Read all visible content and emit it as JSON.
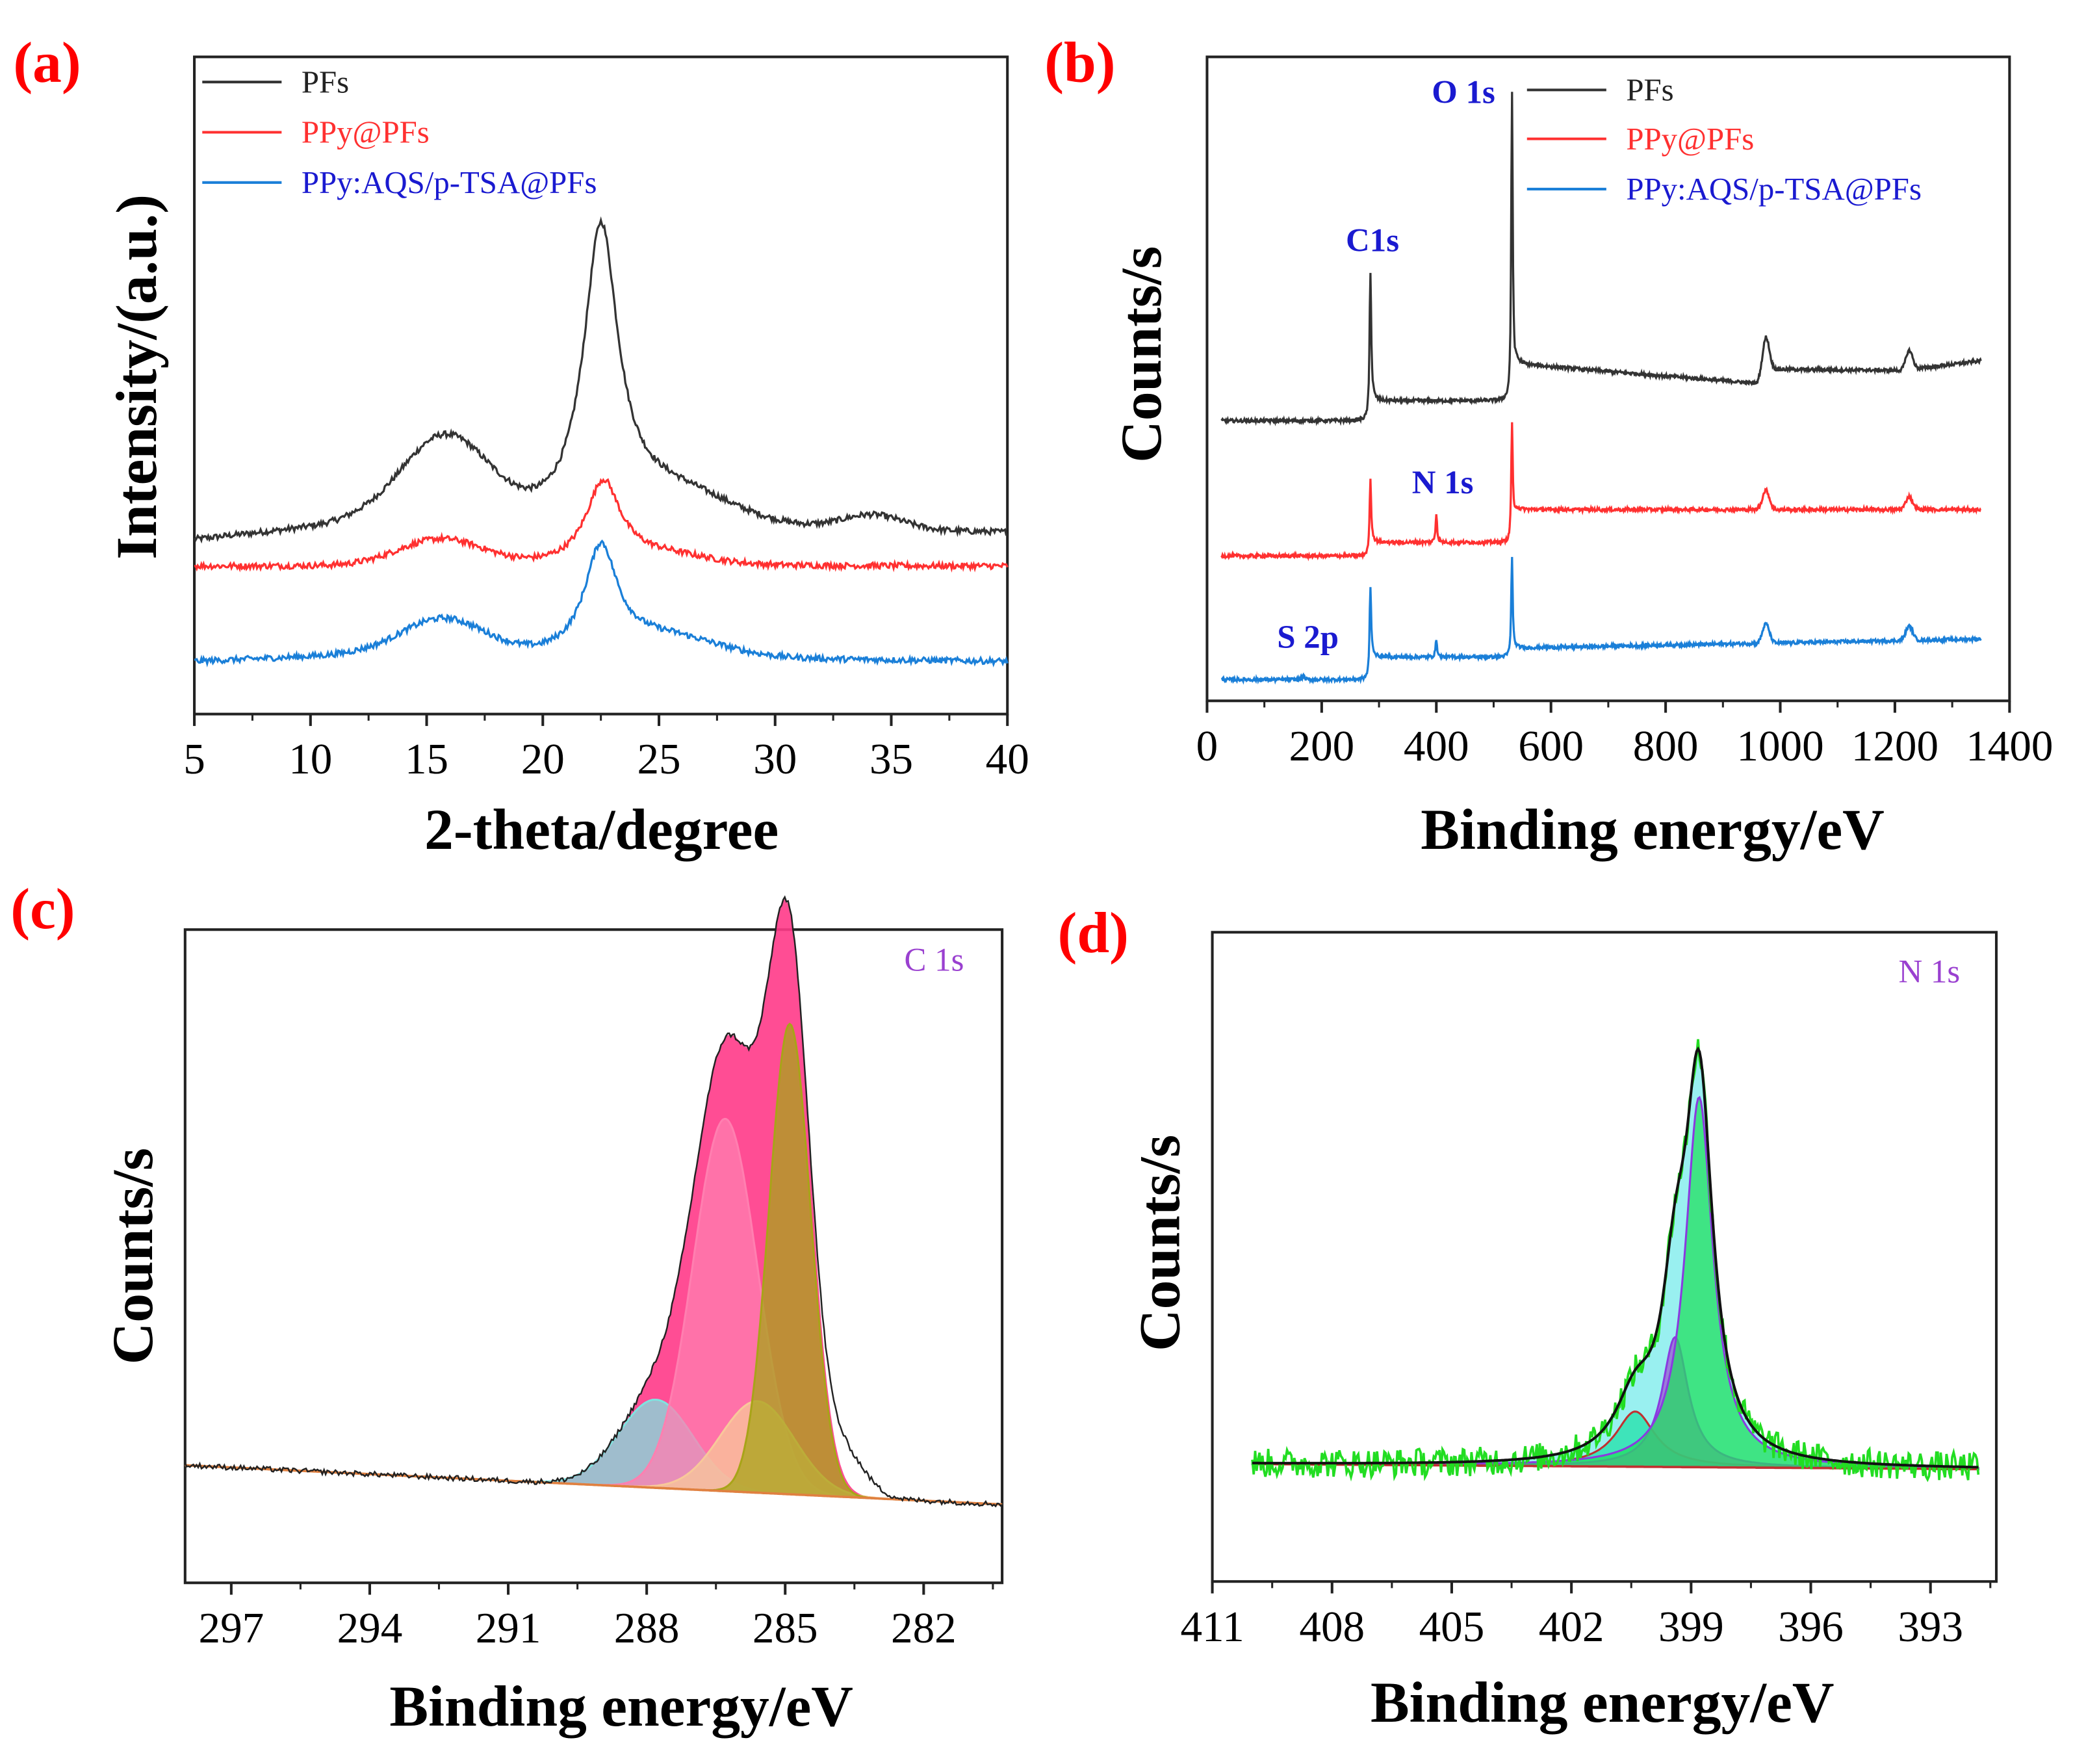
{
  "chart_data": [
    {
      "panel": "(a)",
      "type": "line",
      "xlabel": "2-theta/degree",
      "ylabel": "Intensity/(a.u.)",
      "xlim": [
        5,
        40
      ],
      "ylim": [
        0,
        100
      ],
      "xticks": [
        "5",
        "10",
        "15",
        "20",
        "25",
        "30",
        "35",
        "40"
      ],
      "xtick_values": [
        5,
        10,
        15,
        20,
        25,
        30,
        35,
        40
      ],
      "legend_position": "top-left",
      "series": [
        {
          "name": "PFs",
          "color": "#333333",
          "baseline": [
            [
              5,
              26.5
            ],
            [
              12,
              29
            ],
            [
              40,
              27.6
            ]
          ],
          "peaks": [
            {
              "type": "gauss",
              "center": 15.8,
              "width": 1.9,
              "height": 13
            },
            {
              "type": "lorentz",
              "center": 22.5,
              "width": 0.9,
              "height": 44
            },
            {
              "type": "gauss",
              "center": 25.5,
              "width": 2.5,
              "height": 5
            },
            {
              "type": "gauss",
              "center": 34.2,
              "width": 1.3,
              "height": 2.2
            }
          ]
        },
        {
          "name": "PPy@PFs",
          "color": "#ff3030",
          "baseline": [
            [
              5,
              22.5
            ],
            [
              40,
              22.5
            ]
          ],
          "peaks": [
            {
              "type": "gauss",
              "center": 15.6,
              "width": 1.8,
              "height": 4
            },
            {
              "type": "lorentz",
              "center": 22.6,
              "width": 0.9,
              "height": 12.5
            },
            {
              "type": "gauss",
              "center": 25,
              "width": 2,
              "height": 1.5
            }
          ]
        },
        {
          "name": "PPy:AQS/p-TSA@PFs",
          "color": "#1a7fd8",
          "baseline": [
            [
              5,
              8
            ],
            [
              12,
              9
            ],
            [
              40,
              8
            ]
          ],
          "peaks": [
            {
              "type": "gauss",
              "center": 15.7,
              "width": 1.8,
              "height": 5.5
            },
            {
              "type": "lorentz",
              "center": 22.5,
              "width": 0.85,
              "height": 16
            },
            {
              "type": "gauss",
              "center": 25.2,
              "width": 2.3,
              "height": 3
            }
          ]
        }
      ]
    },
    {
      "panel": "(b)",
      "type": "line",
      "xlabel": "Binding energy/eV",
      "ylabel": "Counts/s",
      "xlim": [
        0,
        1400
      ],
      "ylim": [
        0,
        100
      ],
      "xticks": [
        "0",
        "200",
        "400",
        "600",
        "800",
        "1000",
        "1200",
        "1400"
      ],
      "xtick_values": [
        0,
        200,
        400,
        600,
        800,
        1000,
        1200,
        1400
      ],
      "legend_position": "top-right",
      "annotations": [
        "O 1s",
        "C1s",
        "N 1s",
        "S 2p"
      ],
      "series": [
        {
          "name": "PFs",
          "color": "#333333",
          "baseline": [
            [
              25,
              43.5
            ],
            [
              282,
              43.5
            ],
            [
              290,
              46.6
            ],
            [
              528,
              46.6
            ],
            [
              540,
              52.3
            ],
            [
              960,
              49.3
            ],
            [
              975,
              51.5
            ],
            [
              1215,
              51.3
            ],
            [
              1350,
              52.8
            ]
          ],
          "peaks": [
            {
              "type": "lorentz",
              "center": 285,
              "width": 1.8,
              "height": 22
            },
            {
              "type": "lorentz",
              "center": 532,
              "width": 1.6,
              "height": 46
            },
            {
              "type": "gauss",
              "center": 975,
              "width": 6,
              "height": 5
            },
            {
              "type": "gauss",
              "center": 1225,
              "width": 6,
              "height": 3
            }
          ]
        },
        {
          "name": "PPy@PFs",
          "color": "#ff3030",
          "baseline": [
            [
              25,
              22.5
            ],
            [
              282,
              22.5
            ],
            [
              290,
              24.6
            ],
            [
              528,
              24.6
            ],
            [
              540,
              29.7
            ],
            [
              1350,
              29.7
            ]
          ],
          "peaks": [
            {
              "type": "lorentz",
              "center": 285,
              "width": 1.8,
              "height": 11
            },
            {
              "type": "lorentz",
              "center": 400,
              "width": 1.6,
              "height": 4.5
            },
            {
              "type": "lorentz",
              "center": 532,
              "width": 1.6,
              "height": 17
            },
            {
              "type": "gauss",
              "center": 975,
              "width": 6,
              "height": 3
            },
            {
              "type": "gauss",
              "center": 1225,
              "width": 6,
              "height": 2
            }
          ]
        },
        {
          "name": "PPy:AQS/p-TSA@PFs",
          "color": "#1a7fd8",
          "baseline": [
            [
              25,
              3.3
            ],
            [
              282,
              3.3
            ],
            [
              290,
              6.8
            ],
            [
              528,
              6.8
            ],
            [
              540,
              8.2
            ],
            [
              1350,
              9.6
            ]
          ],
          "peaks": [
            {
              "type": "lorentz",
              "center": 168,
              "width": 1.5,
              "height": 0.8
            },
            {
              "type": "lorentz",
              "center": 285,
              "width": 1.8,
              "height": 13
            },
            {
              "type": "lorentz",
              "center": 400,
              "width": 1.6,
              "height": 2.8
            },
            {
              "type": "lorentz",
              "center": 532,
              "width": 1.6,
              "height": 15
            },
            {
              "type": "gauss",
              "center": 975,
              "width": 6,
              "height": 3
            },
            {
              "type": "gauss",
              "center": 1225,
              "width": 6,
              "height": 2.2
            }
          ]
        }
      ]
    },
    {
      "panel": "(c)",
      "type": "area",
      "xlabel": "Binding energy/eV",
      "ylabel": "Counts/s",
      "xlim": [
        298,
        280.3
      ],
      "ylim": [
        0,
        100
      ],
      "xticks": [
        "297",
        "294",
        "291",
        "288",
        "285",
        "282"
      ],
      "xtick_values": [
        297,
        294,
        291,
        288,
        285,
        282
      ],
      "annotation": "C 1s",
      "background": [
        [
          298,
          18
        ],
        [
          280.3,
          12
        ]
      ],
      "components": [
        {
          "center": 287.8,
          "width": 0.8,
          "height": 13.5,
          "color": "#7fe3e0"
        },
        {
          "center": 286.3,
          "width": 0.7,
          "height": 57,
          "color": "#ff7fb0"
        },
        {
          "center": 285.6,
          "width": 0.8,
          "height": 14,
          "color": "#f8c89a"
        },
        {
          "center": 284.9,
          "width": 0.45,
          "height": 72,
          "color": "#a8a418"
        }
      ],
      "envelope_color": "#ff3a88",
      "raw_color": "#222222"
    },
    {
      "panel": "(d)",
      "type": "area",
      "xlabel": "Binding energy/eV",
      "ylabel": "Counts/s",
      "xlim": [
        411,
        391.35
      ],
      "ylim": [
        0,
        100
      ],
      "xticks": [
        "411",
        "408",
        "405",
        "402",
        "399",
        "396",
        "393"
      ],
      "xtick_values": [
        411,
        408,
        405,
        402,
        399,
        396,
        393
      ],
      "annotation": "N 1s",
      "background": [
        [
          410,
          18.1
        ],
        [
          391.8,
          17.3
        ]
      ],
      "components": [
        {
          "center": 400.4,
          "width": 0.6,
          "height": 8.5,
          "color": "#20e0a8",
          "stroke": "#c03030"
        },
        {
          "center": 399.4,
          "width": 0.4,
          "height": 20,
          "color": "#9a5ad0",
          "stroke": "#8a3ae0"
        },
        {
          "center": 398.8,
          "width": 0.42,
          "height": 57,
          "color": "#22e060",
          "stroke": "#8a3ae0"
        }
      ],
      "envelope_color": "#8eeeee",
      "raw_color": "#22dd22"
    }
  ]
}
